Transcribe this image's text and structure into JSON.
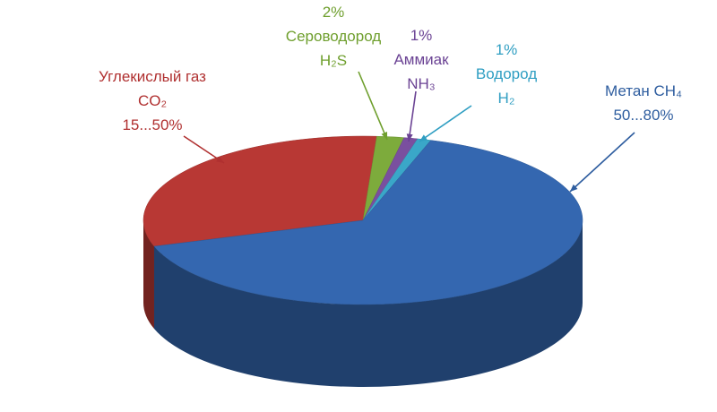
{
  "chart_data": {
    "type": "pie3d",
    "categories": [
      "Углекислый газ",
      "Сероводород",
      "Аммиак",
      "Водород",
      "Метан"
    ],
    "formulas": [
      "CO₂",
      "H₂S",
      "NH₃",
      "H₂",
      "CH₄"
    ],
    "values": [
      31,
      2,
      1,
      1,
      65
    ],
    "value_labels": [
      null,
      "2%",
      "1%",
      "1%",
      null
    ],
    "range_labels": [
      "15...50%",
      null,
      null,
      null,
      "50...80%"
    ],
    "colors": [
      "#b83834",
      "#7dab3c",
      "#7a4f9f",
      "#3aa7c8",
      "#3467b0"
    ],
    "label_colors": [
      "#b03030",
      "#6f9f2e",
      "#6b4394",
      "#2f9ec2",
      "#2e5d9f"
    ]
  }
}
